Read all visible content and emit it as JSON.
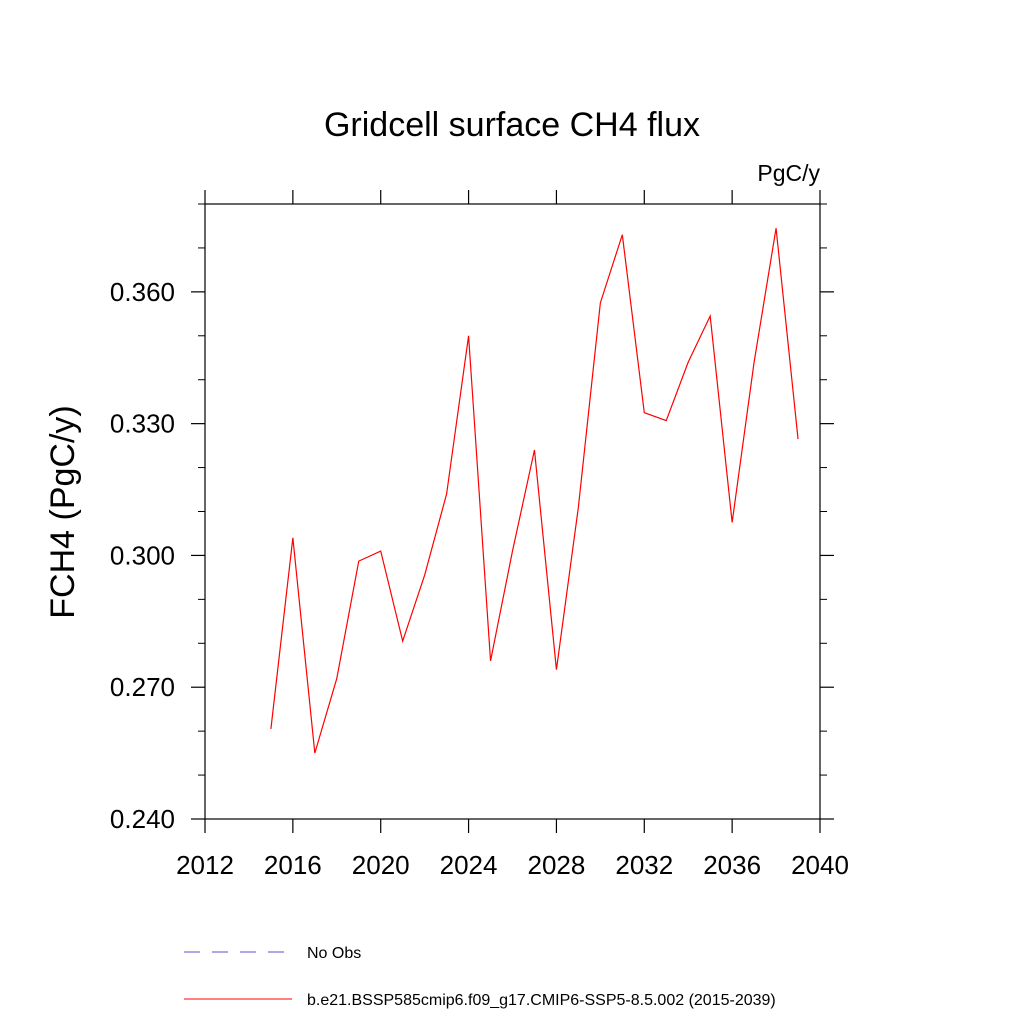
{
  "chart_data": {
    "type": "line",
    "title": "Gridcell surface CH4 flux",
    "units": "PgC/y",
    "xlabel": "",
    "ylabel": "FCH4  (PgC/y)",
    "xlim": [
      2012,
      2040
    ],
    "ylim": [
      0.24,
      0.38
    ],
    "xticks": [
      2012,
      2016,
      2020,
      2024,
      2028,
      2032,
      2036,
      2040
    ],
    "xtick_labels": [
      "2012",
      "2016",
      "2020",
      "2024",
      "2028",
      "2032",
      "2036",
      "2040"
    ],
    "yticks": [
      0.24,
      0.27,
      0.3,
      0.33,
      0.36
    ],
    "ytick_labels": [
      "0.240",
      "0.270",
      "0.300",
      "0.330",
      "0.360"
    ],
    "grid": false,
    "legend_position": "bottom",
    "series": [
      {
        "name": "b.e21.BSSP585cmip6.f09_g17.CMIP6-SSP5-8.5.002 (2015-2039)",
        "color": "#ff0000",
        "dash": "solid",
        "x": [
          2015,
          2016,
          2017,
          2018,
          2019,
          2020,
          2021,
          2022,
          2023,
          2024,
          2025,
          2026,
          2027,
          2028,
          2029,
          2030,
          2031,
          2032,
          2033,
          2034,
          2035,
          2036,
          2037,
          2038,
          2039
        ],
        "values": [
          0.2605,
          0.304,
          0.255,
          0.272,
          0.2987,
          0.301,
          0.2805,
          0.2955,
          0.314,
          0.35,
          0.276,
          0.301,
          0.324,
          0.274,
          0.311,
          0.3575,
          0.373,
          0.3325,
          0.3307,
          0.344,
          0.3545,
          0.3075,
          0.344,
          0.3745,
          0.3265
        ]
      }
    ],
    "legend": [
      {
        "label": "No Obs",
        "color": "#5a4fd0",
        "dash": "dashed"
      },
      {
        "label": "b.e21.BSSP585cmip6.f09_g17.CMIP6-SSP5-8.5.002 (2015-2039)",
        "color": "#ff0000",
        "dash": "solid"
      }
    ]
  }
}
